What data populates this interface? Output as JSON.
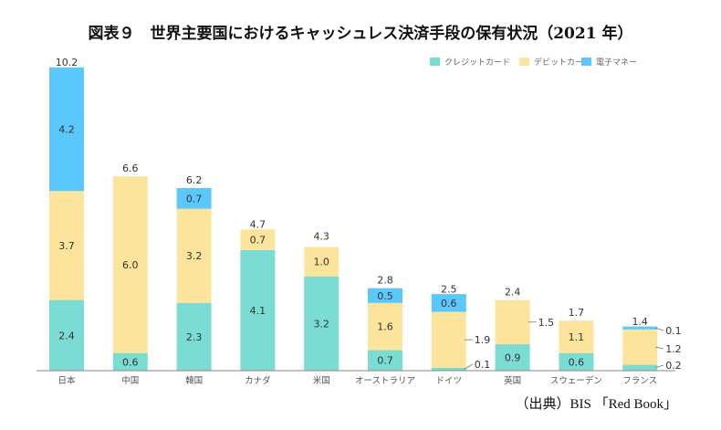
{
  "title": "図表９　世界主要国におけるキャッシュレス決済手段の保有状況（2021 年）",
  "source": "（出典）BIS 「Red Book」",
  "chart_data": {
    "type": "bar",
    "stacked": true,
    "title": "図表９　世界主要国におけるキャッシュレス決済手段の保有状況（2021 年）",
    "xlabel": "",
    "ylabel": "",
    "ylim": [
      0,
      10.2
    ],
    "grid": false,
    "legend_position": "top-right",
    "categories": [
      "日本",
      "中国",
      "韓国",
      "カナダ",
      "米国",
      "オーストラリア",
      "ドイツ",
      "英国",
      "スウェーデン",
      "フランス"
    ],
    "totals": [
      10.2,
      6.6,
      6.2,
      4.7,
      4.3,
      2.8,
      2.5,
      2.4,
      1.7,
      1.4
    ],
    "series": [
      {
        "name": "クレジットカード",
        "color": "#7adcd2",
        "values": [
          2.4,
          0.6,
          2.3,
          4.1,
          3.2,
          0.7,
          0.1,
          0.9,
          0.6,
          0.2
        ]
      },
      {
        "name": "デビットカード",
        "color": "#fde49c",
        "values": [
          3.7,
          6.0,
          3.2,
          0.7,
          1.0,
          1.6,
          1.9,
          1.5,
          1.1,
          1.2
        ]
      },
      {
        "name": "電子マネー",
        "color": "#5ac8fa",
        "values": [
          4.2,
          null,
          0.7,
          null,
          null,
          0.5,
          0.6,
          null,
          null,
          0.1
        ]
      }
    ],
    "outside_labels": [
      {
        "category": "ドイツ",
        "series": 1,
        "text": "1.9"
      },
      {
        "category": "ドイツ",
        "series": 0,
        "text": "0.1"
      },
      {
        "category": "英国",
        "series": 1,
        "text": "1.5"
      },
      {
        "category": "フランス",
        "series": 2,
        "text": "0.1"
      },
      {
        "category": "フランス",
        "series": 1,
        "text": "1.2"
      },
      {
        "category": "フランス",
        "series": 0,
        "text": "0.2"
      }
    ]
  }
}
